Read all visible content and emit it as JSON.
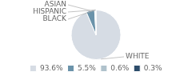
{
  "chart_data": {
    "type": "pie",
    "categories": [
      "WHITE",
      "ASIAN",
      "HISPANIC",
      "BLACK"
    ],
    "values": [
      93.6,
      5.5,
      0.6,
      0.3
    ],
    "value_labels": [
      "93.6%",
      "5.5%",
      "0.6%",
      "0.3%"
    ],
    "colors": [
      "#d6dce4",
      "#6b93aa",
      "#b0c2cc",
      "#2d4d6b"
    ],
    "legend": "bottom"
  }
}
